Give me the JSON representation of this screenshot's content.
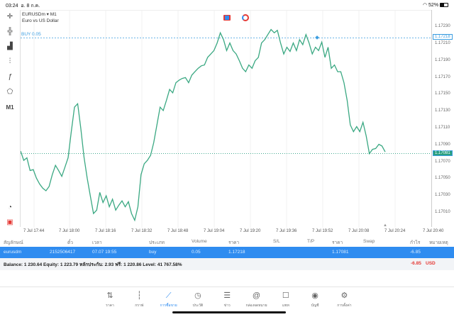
{
  "status": {
    "time": "03:24",
    "date": "อ. 8 ก.ค.",
    "battery": "52%"
  },
  "toolbar": {
    "items": [
      "crosshair-icon",
      "candles-icon",
      "bars-icon",
      "indicators-icon",
      "function-icon",
      "objects-icon"
    ],
    "timeframe": "M1"
  },
  "symbol": {
    "name": "EURUSDm",
    "timeframe": "M1",
    "description": "Euro vs US Dollar"
  },
  "buy_label": "BUY 0.05",
  "colors": {
    "line": "#3aa882",
    "buy": "#3b9de0",
    "bid": "#2a9f80",
    "accent": "#2f8cf0",
    "loss": "#e53935"
  },
  "chart_data": {
    "type": "line",
    "price_ticks": [
      "1.17230",
      "1.17210",
      "1.17190",
      "1.17170",
      "1.17150",
      "1.17130",
      "1.17110",
      "1.17090",
      "1.17070",
      "1.17050",
      "1.17030",
      "1.17010"
    ],
    "time_ticks": [
      "7 Jul 17:44",
      "7 Jul 18:00",
      "7 Jul 18:16",
      "7 Jul 18:32",
      "7 Jul 18:48",
      "7 Jul 19:04",
      "7 Jul 19:20",
      "7 Jul 19:36",
      "7 Jul 19:52",
      "7 Jul 20:08",
      "7 Jul 20:24",
      "7 Jul 20:40"
    ],
    "buy_price": "1.17218",
    "bid_price": "1.17081",
    "prices": [
      1.17084,
      1.17073,
      1.17076,
      1.17061,
      1.17062,
      1.17052,
      1.17045,
      1.1704,
      1.17037,
      1.17042,
      1.17056,
      1.17067,
      1.17061,
      1.17054,
      1.17065,
      1.17076,
      1.17107,
      1.17136,
      1.1714,
      1.17111,
      1.17077,
      1.17052,
      1.17031,
      1.1701,
      1.17014,
      1.17035,
      1.17023,
      1.17031,
      1.17018,
      1.17027,
      1.17014,
      1.1702,
      1.17025,
      1.17018,
      1.17024,
      1.1701,
      1.17002,
      1.17018,
      1.17056,
      1.17069,
      1.17073,
      1.17079,
      1.17094,
      1.17115,
      1.17136,
      1.17132,
      1.17144,
      1.17157,
      1.17153,
      1.17165,
      1.17168,
      1.1717,
      1.17171,
      1.17165,
      1.17174,
      1.17178,
      1.17182,
      1.17185,
      1.17186,
      1.17195,
      1.17199,
      1.17203,
      1.17212,
      1.17224,
      1.17216,
      1.17203,
      1.17212,
      1.17203,
      1.17199,
      1.17191,
      1.17182,
      1.17178,
      1.17186,
      1.17182,
      1.17191,
      1.17195,
      1.17212,
      1.17216,
      1.17222,
      1.17228,
      1.17224,
      1.17227,
      1.17212,
      1.17199,
      1.17207,
      1.17202,
      1.17212,
      1.17203,
      1.17216,
      1.1721,
      1.17222,
      1.17212,
      1.17199,
      1.17207,
      1.17203,
      1.17213,
      1.17195,
      1.17207,
      1.17182,
      1.17186,
      1.17178,
      1.17178,
      1.17165,
      1.17144,
      1.17115,
      1.17107,
      1.17113,
      1.17107,
      1.17118,
      1.17102,
      1.17081,
      1.17086,
      1.17087,
      1.17092,
      1.1709,
      1.17083
    ]
  },
  "table": {
    "headers": [
      "สัญลักษณ์",
      "ตั๋ว",
      "เวลา",
      "ประเภท",
      "Volume",
      "ราคา",
      "S/L",
      "T/P",
      "ราคา",
      "Swap",
      "กำไร",
      "หมายเหตุ"
    ],
    "row": [
      "eurusdm",
      "2152506417",
      "07.07 19:55",
      "buy",
      "0.05",
      "1.17218",
      "",
      "",
      "1.17081",
      "",
      "-6.85",
      ""
    ],
    "balance": "Balance: 1 230.64 Equity: 1 223.79 หลักประกัน: 2.93 ฟรี: 1 220.86 Level: 41 767.58%",
    "total": "-6.85",
    "currency": "USD"
  },
  "nav": [
    {
      "icon": "quotes-icon",
      "glyph": "⇅",
      "label": "ราคา"
    },
    {
      "icon": "chart-icon",
      "glyph": "┆",
      "label": "กราฟ"
    },
    {
      "icon": "trade-icon",
      "glyph": "⟋",
      "label": "การซื้อขาย",
      "active": true
    },
    {
      "icon": "history-icon",
      "glyph": "◷",
      "label": "ประวัติ"
    },
    {
      "icon": "news-icon",
      "glyph": "☰",
      "label": "ข่าว"
    },
    {
      "icon": "mailbox-icon",
      "glyph": "@",
      "label": "กล่องจดหมาย"
    },
    {
      "icon": "chat-icon",
      "glyph": "☐",
      "label": "แชท"
    },
    {
      "icon": "account-icon",
      "glyph": "◉",
      "label": "บัญชี"
    },
    {
      "icon": "settings-icon",
      "glyph": "⚙",
      "label": "การตั้งค่า"
    }
  ]
}
